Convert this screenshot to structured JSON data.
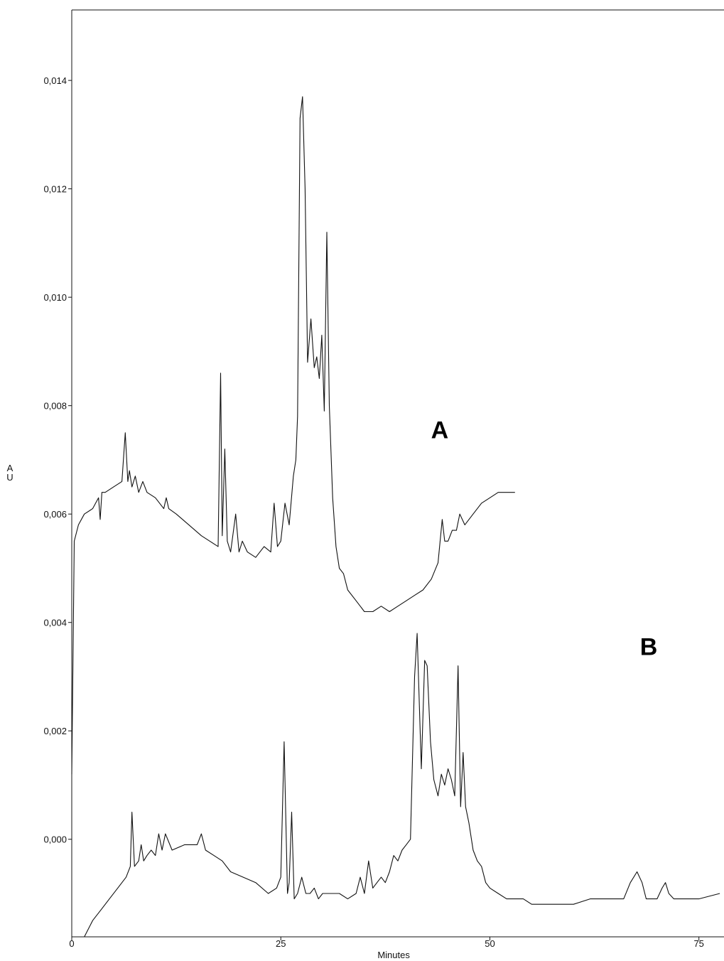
{
  "chart_data": {
    "type": "line",
    "xlabel": "Minutes",
    "ylabel": "AU",
    "ylabel_chars": [
      "A",
      "U"
    ],
    "xlim": [
      0,
      78
    ],
    "ylim": [
      -0.0018,
      0.0153
    ],
    "x_ticks": [
      0,
      25,
      50,
      75
    ],
    "x_tick_labels": [
      "0",
      "25",
      "50",
      "75"
    ],
    "y_ticks": [
      0.0,
      0.002,
      0.004,
      0.006,
      0.008,
      0.01,
      0.012,
      0.014
    ],
    "y_tick_labels": [
      "0,000",
      "0,002",
      "0,004",
      "0,006",
      "0,008",
      "0,010",
      "0,012",
      "0,014"
    ],
    "grid": false,
    "series": [
      {
        "name": "A",
        "label_anchor": [
          44.0,
          0.0074
        ],
        "x": [
          0.0,
          0.3,
          0.8,
          1.5,
          2.5,
          3.2,
          3.4,
          3.6,
          4.0,
          5.0,
          6.0,
          6.4,
          6.7,
          6.9,
          7.2,
          7.6,
          8.0,
          8.5,
          9.0,
          10.0,
          11.0,
          11.3,
          11.6,
          12.5,
          14.0,
          15.5,
          16.5,
          17.5,
          17.8,
          18.0,
          18.3,
          18.6,
          19.0,
          19.6,
          20.0,
          20.4,
          21.0,
          22.0,
          23.0,
          23.8,
          24.2,
          24.6,
          25.0,
          25.5,
          26.0,
          26.5,
          26.8,
          27.0,
          27.3,
          27.6,
          27.9,
          28.2,
          28.6,
          29.0,
          29.3,
          29.6,
          29.9,
          30.2,
          30.5,
          30.8,
          31.2,
          31.6,
          32.0,
          32.5,
          33.0,
          34.0,
          35.0,
          36.0,
          37.0,
          38.0,
          39.0,
          40.0,
          41.0,
          42.0,
          43.0,
          43.8,
          44.3,
          44.6,
          45.0,
          45.5,
          46.0,
          46.4,
          47.0,
          48.0,
          49.0,
          50.0,
          51.0,
          52.0,
          53.0
        ],
        "y": [
          0.0012,
          0.0055,
          0.0058,
          0.006,
          0.0061,
          0.0063,
          0.0059,
          0.0064,
          0.0064,
          0.0065,
          0.0066,
          0.0075,
          0.0066,
          0.0068,
          0.0065,
          0.0067,
          0.0064,
          0.0066,
          0.0064,
          0.0063,
          0.0061,
          0.0063,
          0.0061,
          0.006,
          0.0058,
          0.0056,
          0.0055,
          0.0054,
          0.0086,
          0.0056,
          0.0072,
          0.0055,
          0.0053,
          0.006,
          0.0053,
          0.0055,
          0.0053,
          0.0052,
          0.0054,
          0.0053,
          0.0062,
          0.0054,
          0.0055,
          0.0062,
          0.0058,
          0.0067,
          0.007,
          0.0078,
          0.0133,
          0.0137,
          0.012,
          0.0088,
          0.0096,
          0.0087,
          0.0089,
          0.0085,
          0.0093,
          0.0079,
          0.0112,
          0.008,
          0.0063,
          0.0054,
          0.005,
          0.0049,
          0.0046,
          0.0044,
          0.0042,
          0.0042,
          0.0043,
          0.0042,
          0.0043,
          0.0044,
          0.0045,
          0.0046,
          0.0048,
          0.0051,
          0.0059,
          0.0055,
          0.0055,
          0.0057,
          0.0057,
          0.006,
          0.0058,
          0.006,
          0.0062,
          0.0063,
          0.0064,
          0.0064,
          0.0064
        ]
      },
      {
        "name": "B",
        "label_anchor": [
          69.0,
          0.0034
        ],
        "x": [
          1.5,
          2.5,
          3.5,
          4.5,
          5.5,
          6.5,
          7.0,
          7.2,
          7.5,
          8.0,
          8.3,
          8.6,
          9.0,
          9.5,
          10.0,
          10.4,
          10.8,
          11.2,
          12.0,
          13.5,
          15.0,
          15.5,
          16.0,
          17.0,
          18.0,
          19.0,
          20.5,
          22.0,
          23.5,
          24.5,
          25.0,
          25.4,
          25.8,
          26.0,
          26.3,
          26.6,
          27.0,
          27.5,
          28.0,
          28.5,
          29.0,
          29.5,
          30.0,
          31.0,
          32.0,
          33.0,
          34.0,
          34.5,
          35.0,
          35.5,
          36.0,
          36.5,
          37.0,
          37.5,
          38.0,
          38.5,
          39.0,
          39.5,
          40.0,
          40.5,
          41.0,
          41.3,
          41.8,
          42.2,
          42.5,
          42.9,
          43.3,
          43.8,
          44.2,
          44.6,
          45.0,
          45.4,
          45.8,
          46.2,
          46.5,
          46.8,
          47.1,
          47.5,
          48.0,
          48.5,
          49.0,
          49.5,
          50.0,
          51.0,
          52.0,
          53.0,
          54.0,
          55.0,
          56.0,
          57.0,
          58.0,
          60.0,
          62.0,
          64.0,
          66.0,
          66.8,
          67.6,
          68.2,
          68.7,
          69.2,
          70.0,
          70.6,
          71.0,
          71.4,
          72.0,
          73.0,
          75.0,
          77.5
        ],
        "y": [
          -0.0018,
          -0.0015,
          -0.0013,
          -0.0011,
          -0.0009,
          -0.0007,
          -0.0005,
          0.0005,
          -0.0005,
          -0.0004,
          -0.0001,
          -0.0004,
          -0.0003,
          -0.0002,
          -0.0003,
          0.0001,
          -0.0002,
          0.0001,
          -0.0002,
          -0.0001,
          -0.0001,
          0.0001,
          -0.0002,
          -0.0003,
          -0.0004,
          -0.0006,
          -0.0007,
          -0.0008,
          -0.001,
          -0.0009,
          -0.0007,
          0.0018,
          -0.001,
          -0.0008,
          0.0005,
          -0.0011,
          -0.001,
          -0.0007,
          -0.001,
          -0.001,
          -0.0009,
          -0.0011,
          -0.001,
          -0.001,
          -0.001,
          -0.0011,
          -0.001,
          -0.0007,
          -0.001,
          -0.0004,
          -0.0009,
          -0.0008,
          -0.0007,
          -0.0008,
          -0.0006,
          -0.0003,
          -0.0004,
          -0.0002,
          -0.0001,
          0.0,
          0.003,
          0.0038,
          0.0013,
          0.0033,
          0.0032,
          0.0018,
          0.0011,
          0.0008,
          0.0012,
          0.001,
          0.0013,
          0.0011,
          0.0008,
          0.0032,
          0.0006,
          0.0016,
          0.0006,
          0.0003,
          -0.0002,
          -0.0004,
          -0.0005,
          -0.0008,
          -0.0009,
          -0.001,
          -0.0011,
          -0.0011,
          -0.0011,
          -0.0012,
          -0.0012,
          -0.0012,
          -0.0012,
          -0.0012,
          -0.0011,
          -0.0011,
          -0.0011,
          -0.0008,
          -0.0006,
          -0.0008,
          -0.0011,
          -0.0011,
          -0.0011,
          -0.0009,
          -0.0008,
          -0.001,
          -0.0011,
          -0.0011,
          -0.0011,
          -0.001
        ]
      }
    ]
  }
}
